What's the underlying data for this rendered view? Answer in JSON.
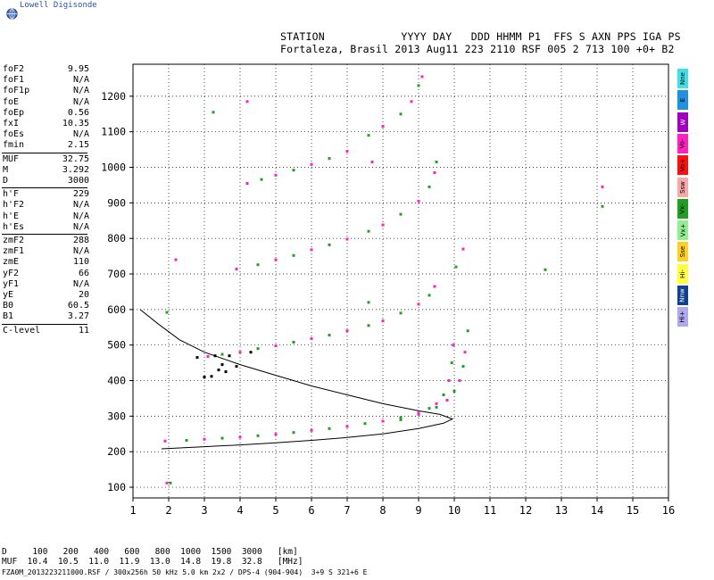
{
  "app": {
    "name": "Lowell Digisonde"
  },
  "header": {
    "line1": "STATION            YYYY DAY   DDD HHMM P1  FFS S AXN PPS IGA PS",
    "line2": "Fortaleza, Brasil 2013 Aug11 223 2110 RSF 005 2 713 100 +0+ B2"
  },
  "params": {
    "group1": [
      {
        "name": "foF2",
        "value": "9.95"
      },
      {
        "name": "foF1",
        "value": "N/A"
      },
      {
        "name": "foF1p",
        "value": "N/A"
      },
      {
        "name": "foE",
        "value": "N/A"
      },
      {
        "name": "foEp",
        "value": "0.56"
      },
      {
        "name": "fxI",
        "value": "10.35"
      },
      {
        "name": "foEs",
        "value": "N/A"
      },
      {
        "name": "fmin",
        "value": "2.15"
      }
    ],
    "group2": [
      {
        "name": "MUF",
        "value": "32.75"
      },
      {
        "name": "M",
        "value": "3.292"
      },
      {
        "name": "D",
        "value": "3000"
      }
    ],
    "group3": [
      {
        "name": "h'F",
        "value": "229"
      },
      {
        "name": "h'F2",
        "value": "N/A"
      },
      {
        "name": "h'E",
        "value": "N/A"
      },
      {
        "name": "h'Es",
        "value": "N/A"
      }
    ],
    "group4": [
      {
        "name": "zmF2",
        "value": "288"
      },
      {
        "name": "zmF1",
        "value": "N/A"
      },
      {
        "name": "zmE",
        "value": "110"
      },
      {
        "name": "yF2",
        "value": "66"
      },
      {
        "name": "yF1",
        "value": "N/A"
      },
      {
        "name": "yE",
        "value": "20"
      },
      {
        "name": "B0",
        "value": "60.5"
      },
      {
        "name": "B1",
        "value": "3.27"
      }
    ],
    "group5": [
      {
        "name": "C-level",
        "value": "11"
      }
    ]
  },
  "legend": [
    {
      "label": "Nne",
      "color": "#40e0e8"
    },
    {
      "label": "E",
      "color": "#2090e0"
    },
    {
      "label": "W",
      "color": "#a000c0"
    },
    {
      "label": "Vo-",
      "color": "#ff20c0"
    },
    {
      "label": "Vo+",
      "color": "#ff1010"
    },
    {
      "label": "Ssw",
      "color": "#f8a8a8"
    },
    {
      "label": "Vx-",
      "color": "#20a020"
    },
    {
      "label": "Vx+",
      "color": "#90f090"
    },
    {
      "label": "Sse",
      "color": "#ffd020"
    },
    {
      "label": "Hi-",
      "color": "#ffff40"
    },
    {
      "label": "Nnw",
      "color": "#104090"
    },
    {
      "label": "Hi+",
      "color": "#b0a8f0"
    }
  ],
  "footer": {
    "d_line": "D     100   200   400   600   800  1000  1500  3000   [km]",
    "muf_line": "MUF  10.4  10.5  11.0  11.9  13.0  14.8  19.8  32.8   [MHz]",
    "file_line": "FZA0M_2013223211000.RSF / 300x256h 50 kHz 5.0 km 2x2 / DPS-4 (904-904)  3+9 S 321+6 E"
  },
  "chart_data": {
    "type": "scatter",
    "title": "",
    "xlabel": "",
    "ylabel": "",
    "xlim": [
      1,
      16
    ],
    "ylim": [
      70,
      1290
    ],
    "xticks": [
      1,
      2,
      3,
      4,
      5,
      6,
      7,
      8,
      9,
      10,
      11,
      12,
      13,
      14,
      15,
      16
    ],
    "yticks": [
      100,
      200,
      300,
      400,
      500,
      600,
      700,
      800,
      900,
      1000,
      1100,
      1200
    ],
    "grid": "dotted",
    "series": [
      {
        "name": "F-trace O",
        "color": "#ff20c0",
        "points": [
          [
            1.9,
            230
          ],
          [
            2.5,
            232
          ],
          [
            3,
            235
          ],
          [
            3.5,
            238
          ],
          [
            4,
            241
          ],
          [
            4.5,
            245
          ],
          [
            5,
            249
          ],
          [
            5.5,
            254
          ],
          [
            6,
            260
          ],
          [
            6.5,
            265
          ],
          [
            7,
            271
          ],
          [
            7.5,
            279
          ],
          [
            8,
            286
          ],
          [
            8.5,
            296
          ],
          [
            9,
            309
          ],
          [
            9.3,
            322
          ],
          [
            9.5,
            335
          ],
          [
            9.7,
            360
          ],
          [
            9.85,
            400
          ],
          [
            9.93,
            450
          ],
          [
            9.97,
            500
          ]
        ]
      },
      {
        "name": "F-trace X",
        "color": "#20a020",
        "points": [
          [
            8.5,
            290
          ],
          [
            9,
            305
          ],
          [
            9.5,
            325
          ],
          [
            9.8,
            345
          ],
          [
            10,
            370
          ],
          [
            10.15,
            400
          ],
          [
            10.25,
            440
          ],
          [
            10.3,
            480
          ],
          [
            10.38,
            540
          ]
        ]
      },
      {
        "name": "F-2hop",
        "color": "#ff20c0",
        "points": [
          [
            3.1,
            468
          ],
          [
            3.5,
            474
          ],
          [
            4,
            480
          ],
          [
            4.5,
            490
          ],
          [
            5,
            498
          ],
          [
            5.5,
            508
          ],
          [
            6,
            518
          ],
          [
            6.5,
            528
          ],
          [
            7,
            540
          ],
          [
            7.6,
            555
          ],
          [
            8,
            568
          ],
          [
            8.5,
            590
          ],
          [
            9,
            615
          ],
          [
            9.3,
            640
          ],
          [
            9.45,
            665
          ]
        ]
      },
      {
        "name": "F-3hop",
        "color": "#ff20c0",
        "points": [
          [
            3.9,
            714
          ],
          [
            4.5,
            726
          ],
          [
            5,
            740
          ],
          [
            5.5,
            752
          ],
          [
            6,
            768
          ],
          [
            6.5,
            782
          ],
          [
            7,
            798
          ],
          [
            7.6,
            820
          ],
          [
            8,
            838
          ],
          [
            8.5,
            868
          ],
          [
            9,
            905
          ],
          [
            9.3,
            945
          ],
          [
            9.45,
            985
          ],
          [
            9.5,
            1015
          ]
        ]
      },
      {
        "name": "F-4hop",
        "color": "#ff20c0",
        "points": [
          [
            4.2,
            955
          ],
          [
            4.6,
            966
          ],
          [
            5,
            978
          ],
          [
            5.5,
            992
          ],
          [
            6,
            1008
          ],
          [
            6.5,
            1025
          ],
          [
            7,
            1045
          ],
          [
            7.6,
            1090
          ],
          [
            8,
            1115
          ],
          [
            8.5,
            1150
          ],
          [
            8.8,
            1185
          ],
          [
            9,
            1230
          ],
          [
            9.1,
            1255
          ]
        ]
      },
      {
        "name": "Sporadic",
        "color": "#000000",
        "points": [
          [
            2.8,
            465
          ],
          [
            3.0,
            410
          ],
          [
            3.2,
            412
          ],
          [
            3.4,
            430
          ],
          [
            3.5,
            445
          ],
          [
            3.6,
            425
          ],
          [
            3.9,
            440
          ],
          [
            3.3,
            470
          ],
          [
            3.7,
            470
          ],
          [
            4.3,
            480
          ]
        ]
      },
      {
        "name": "Other echoes",
        "color": "#20a020",
        "points": [
          [
            1.95,
            592
          ],
          [
            2.2,
            740
          ],
          [
            3.25,
            1155
          ],
          [
            4.2,
            1185
          ],
          [
            7.6,
            620
          ],
          [
            7.7,
            1015
          ],
          [
            10.05,
            720
          ],
          [
            10.25,
            770
          ],
          [
            12.55,
            712
          ],
          [
            14.15,
            945
          ],
          [
            14.15,
            890
          ],
          [
            1.95,
            112
          ],
          [
            2.05,
            112
          ]
        ]
      }
    ],
    "model_curves": [
      {
        "name": "profile",
        "points": [
          [
            1.8,
            208
          ],
          [
            3,
            214
          ],
          [
            4,
            219
          ],
          [
            5,
            225
          ],
          [
            6,
            232
          ],
          [
            7,
            240
          ],
          [
            8,
            250
          ],
          [
            9,
            265
          ],
          [
            9.7,
            280
          ],
          [
            9.95,
            292
          ],
          [
            9.6,
            305
          ],
          [
            9,
            315
          ],
          [
            8,
            335
          ],
          [
            7,
            360
          ],
          [
            6,
            385
          ],
          [
            5,
            415
          ],
          [
            4,
            445
          ],
          [
            3,
            480
          ],
          [
            2.3,
            515
          ],
          [
            1.7,
            560
          ],
          [
            1.2,
            600
          ]
        ]
      }
    ]
  }
}
